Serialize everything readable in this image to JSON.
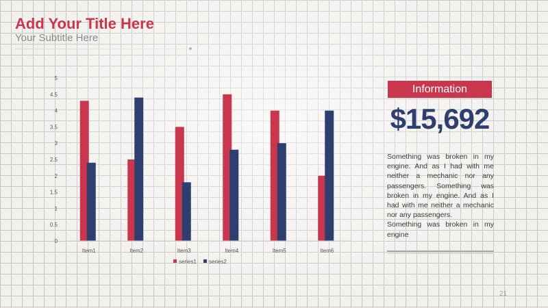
{
  "slide": {
    "title": "Add Your Title Here",
    "subtitle": "Your Subtitle Here",
    "page_number": "21"
  },
  "info": {
    "heading": "Information",
    "value": "$15,692",
    "paragraphs": [
      "Something was broken in my engine. And as I had with me neither a mechanic nor any passengers. Something was broken in my engine. And as I had with me neither a mechanic nor any passengers.",
      "Something was broken in my engine"
    ]
  },
  "chart_data": {
    "type": "bar",
    "categories": [
      "Item1",
      "Item2",
      "Item3",
      "Item4",
      "Item5",
      "Item6"
    ],
    "series": [
      {
        "name": "series1",
        "color": "#c8374e",
        "values": [
          4.3,
          2.5,
          3.5,
          4.5,
          4.0,
          2.0
        ]
      },
      {
        "name": "series2",
        "color": "#2e3e6e",
        "values": [
          2.4,
          4.4,
          1.8,
          2.8,
          3.0,
          4.0
        ]
      }
    ],
    "yticks": [
      "0",
      "0.5",
      "1",
      "1.5",
      "2",
      "2.5",
      "3",
      "3.5",
      "4",
      "4.5",
      "5"
    ],
    "ylim": [
      0,
      5
    ],
    "grid": false,
    "legend_position": "bottom"
  }
}
